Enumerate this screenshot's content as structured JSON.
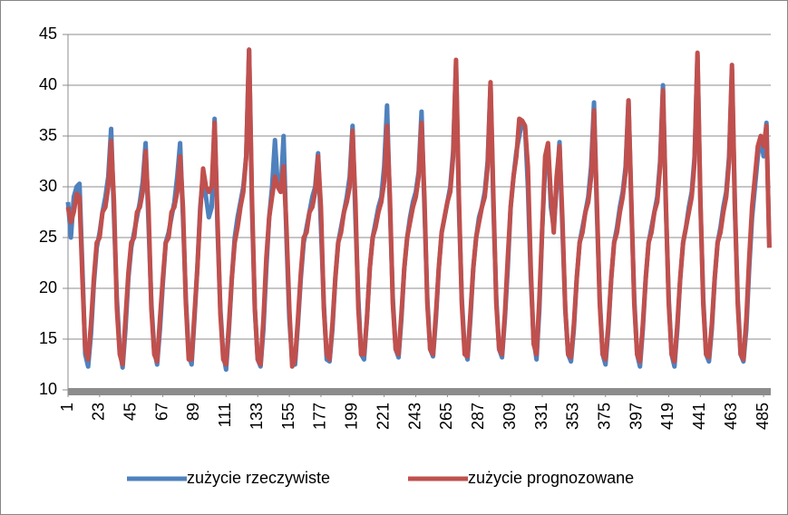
{
  "chart_data": {
    "type": "line",
    "legend": "bottom",
    "grid": true,
    "xlim": [
      1,
      490
    ],
    "xticks": [
      1,
      23,
      45,
      67,
      89,
      111,
      133,
      155,
      177,
      199,
      221,
      243,
      265,
      287,
      309,
      331,
      353,
      375,
      397,
      419,
      441,
      463,
      485
    ],
    "ylim": [
      10,
      45
    ],
    "yticks": [
      10,
      15,
      20,
      25,
      30,
      35,
      40,
      45
    ],
    "x": [
      1,
      3,
      5,
      7,
      9,
      11,
      13,
      15,
      17,
      19,
      21,
      23,
      25,
      27,
      29,
      31,
      33,
      35,
      37,
      39,
      41,
      43,
      45,
      47,
      49,
      51,
      53,
      55,
      57,
      59,
      61,
      63,
      65,
      67,
      69,
      71,
      73,
      75,
      77,
      79,
      81,
      83,
      85,
      87,
      89,
      91,
      93,
      95,
      97,
      99,
      101,
      103,
      105,
      107,
      109,
      111,
      113,
      115,
      117,
      119,
      121,
      123,
      125,
      127,
      129,
      131,
      133,
      135,
      137,
      139,
      141,
      143,
      145,
      147,
      149,
      151,
      153,
      155,
      157,
      159,
      161,
      163,
      165,
      167,
      169,
      171,
      173,
      175,
      177,
      179,
      181,
      183,
      185,
      187,
      189,
      191,
      193,
      195,
      197,
      199,
      201,
      203,
      205,
      207,
      209,
      211,
      213,
      215,
      217,
      219,
      221,
      223,
      225,
      227,
      229,
      231,
      233,
      235,
      237,
      239,
      241,
      243,
      245,
      247,
      249,
      251,
      253,
      255,
      257,
      259,
      261,
      263,
      265,
      267,
      269,
      271,
      273,
      275,
      277,
      279,
      281,
      283,
      285,
      287,
      289,
      291,
      293,
      295,
      297,
      299,
      301,
      303,
      305,
      307,
      309,
      311,
      313,
      315,
      317,
      319,
      321,
      323,
      325,
      327,
      329,
      331,
      333,
      335,
      337,
      339,
      341,
      343,
      345,
      347,
      349,
      351,
      353,
      355,
      357,
      359,
      361,
      363,
      365,
      367,
      369,
      371,
      373,
      375,
      377,
      379,
      381,
      383,
      385,
      387,
      389,
      391,
      393,
      395,
      397,
      399,
      401,
      403,
      405,
      407,
      409,
      411,
      413,
      415,
      417,
      419,
      421,
      423,
      425,
      427,
      429,
      431,
      433,
      435,
      437,
      439,
      441,
      443,
      445,
      447,
      449,
      451,
      453,
      455,
      457,
      459,
      461,
      463,
      465,
      467,
      469,
      471,
      473,
      475,
      477,
      479,
      481,
      483,
      485,
      487,
      489
    ],
    "series": [
      {
        "name": "zużycie rzeczywiste",
        "color": "#4f81bd",
        "values": [
          28.5,
          25,
          29,
          30,
          30.3,
          22,
          13.5,
          12.3,
          15.5,
          20.5,
          24,
          25.5,
          27.5,
          29,
          31,
          35.7,
          27,
          19,
          14,
          12.2,
          16,
          21,
          24,
          25.5,
          27,
          28.5,
          30.5,
          34.3,
          26.5,
          18.5,
          14,
          12.5,
          16,
          20.5,
          24.5,
          25.5,
          27,
          28.5,
          31,
          34.3,
          27,
          19,
          13.5,
          12.5,
          17,
          22,
          28,
          31.3,
          29,
          27,
          28,
          36.7,
          26,
          18,
          13.5,
          12,
          16,
          21,
          25,
          27,
          28.5,
          30,
          33,
          43.5,
          28,
          18,
          13,
          12.3,
          16,
          22,
          27,
          30,
          34.6,
          30,
          29.5,
          35,
          25,
          17,
          12.8,
          12.5,
          16.5,
          21,
          24.5,
          26,
          27.5,
          29,
          30,
          33.3,
          26,
          18.5,
          13,
          12.8,
          16,
          21,
          24.5,
          26,
          27.5,
          29,
          31,
          36,
          27,
          19,
          13.5,
          13,
          17,
          22,
          25,
          26.5,
          28,
          29,
          32,
          38,
          28,
          19,
          14,
          13.2,
          17,
          22,
          25,
          27,
          28.5,
          29.5,
          31.5,
          37.4,
          28,
          19,
          14,
          13.3,
          17,
          22,
          25.5,
          27,
          28.5,
          30,
          33.5,
          42,
          28,
          19,
          14,
          13,
          17,
          22,
          25,
          27,
          28,
          29.5,
          32.5,
          40,
          28,
          19,
          14,
          13.2,
          17,
          22,
          28,
          31,
          33.5,
          35,
          36.5,
          36,
          30,
          21,
          15,
          13,
          18,
          26,
          32,
          34,
          28,
          26,
          30,
          34.4,
          26,
          18,
          13.5,
          12.8,
          16,
          21,
          24.5,
          26,
          27.5,
          29,
          32,
          38.3,
          27.5,
          19,
          13.5,
          12.5,
          16,
          21,
          24.5,
          26,
          28,
          29.5,
          32,
          38.5,
          28,
          19,
          13.5,
          12.3,
          16,
          21,
          24.5,
          26,
          27.5,
          29,
          32.5,
          40,
          28,
          19,
          13.5,
          12.3,
          16,
          21,
          24.5,
          26,
          28,
          29.5,
          33,
          43,
          28.5,
          19,
          13.5,
          12.8,
          16,
          21,
          24.5,
          26,
          28,
          29.5,
          33,
          41.5,
          28,
          19,
          13.5,
          12.8,
          16,
          22,
          27,
          30,
          33,
          35,
          33,
          36.3,
          24
        ]
      },
      {
        "name": "zużycie prognozowane",
        "color": "#c0504d",
        "values": [
          28,
          26.5,
          27.5,
          29.3,
          29,
          21,
          14,
          13,
          16.5,
          21,
          24.5,
          25,
          27.5,
          28,
          30,
          34.5,
          28.5,
          18,
          13.5,
          12.5,
          17,
          21.5,
          24.5,
          25,
          27.5,
          28,
          29.5,
          33.5,
          28,
          18,
          13.5,
          12.8,
          17,
          21,
          24.5,
          25,
          27.5,
          28,
          29.5,
          33,
          28,
          18.5,
          13,
          13,
          17.5,
          22,
          27.5,
          31.8,
          30,
          29.5,
          30,
          36.3,
          27,
          17.5,
          13,
          12.5,
          16.5,
          21,
          24.5,
          26,
          28,
          29.5,
          33,
          43.5,
          29,
          18,
          13,
          12.5,
          17,
          23,
          27,
          29,
          31,
          30,
          29.5,
          32,
          26,
          18,
          12.3,
          13,
          17,
          21.5,
          25,
          25.5,
          27.5,
          28,
          29.5,
          33,
          28,
          18,
          13.5,
          13,
          16.5,
          21,
          24.5,
          25.5,
          27.5,
          28.5,
          30,
          35.5,
          28.5,
          18,
          13.5,
          13.5,
          17,
          22,
          25,
          26,
          27.5,
          28.5,
          30.5,
          36,
          29,
          18.5,
          14,
          13.5,
          17.5,
          22,
          25,
          26.5,
          28,
          29,
          31,
          36.3,
          29,
          18.5,
          14,
          13.5,
          17.5,
          22,
          25.5,
          27,
          28.5,
          29.5,
          33,
          42.5,
          29,
          18.5,
          13.5,
          13.3,
          17.5,
          22,
          25,
          26.5,
          28,
          29,
          32,
          40.3,
          29,
          18.5,
          14,
          13.5,
          17.5,
          23,
          28,
          31,
          33,
          36.7,
          36.5,
          36,
          32,
          22,
          14.5,
          13.5,
          19,
          26,
          33,
          34.3,
          29,
          25.5,
          31,
          34,
          27,
          18,
          13.5,
          13.2,
          16.5,
          21,
          24.5,
          25.5,
          27.5,
          28.5,
          31,
          37.5,
          28.5,
          18.5,
          13.5,
          13,
          16.5,
          21,
          24.5,
          25.5,
          27.5,
          29,
          31.5,
          38.5,
          28.5,
          18.5,
          13.5,
          12.8,
          16.5,
          21,
          24.5,
          25.5,
          27.5,
          28.5,
          32,
          39.5,
          28.5,
          18.5,
          13.5,
          12.8,
          16.5,
          21,
          24.5,
          26,
          27.5,
          29,
          32.5,
          43.2,
          29,
          18.5,
          13.5,
          13.2,
          16.5,
          21,
          24.5,
          25.5,
          27.5,
          29,
          32.5,
          42,
          28.5,
          18.5,
          13.5,
          13,
          17,
          23,
          28,
          31,
          34,
          35,
          34,
          36,
          24
        ]
      }
    ]
  }
}
